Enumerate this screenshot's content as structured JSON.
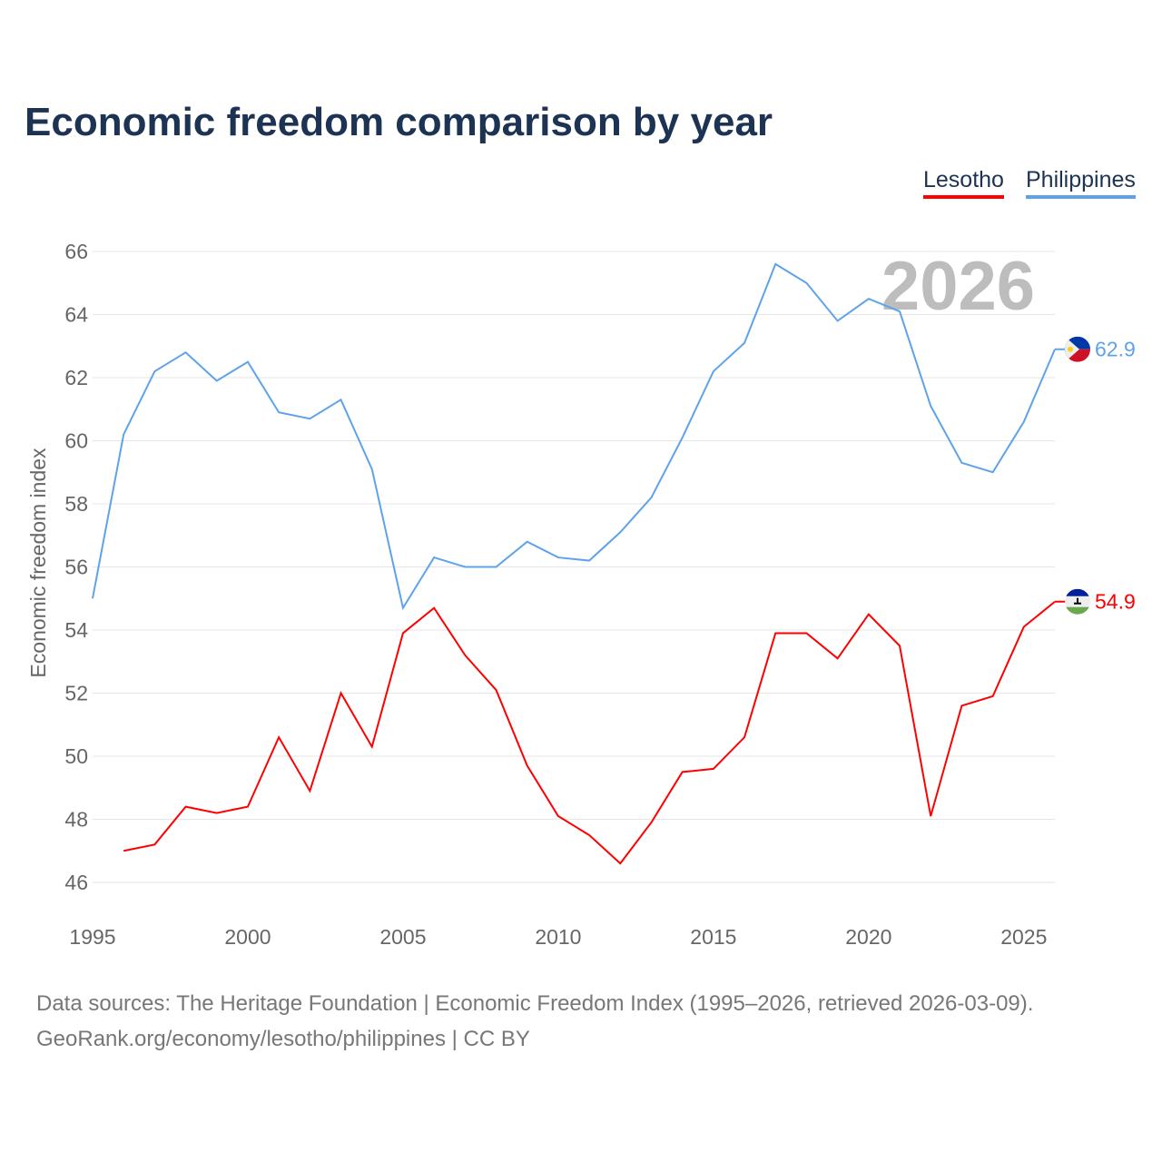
{
  "title": "Economic freedom comparison by year",
  "footer": {
    "line1": "Data sources: The Heritage Foundation | Economic Freedom Index (1995–2026, retrieved 2026-03-09).",
    "line2": "GeoRank.org/economy/lesotho/philippines | CC BY"
  },
  "chart_data": {
    "type": "line",
    "title": "Economic freedom comparison by year",
    "xlabel": "",
    "ylabel": "Economic freedom index",
    "year_watermark": "2026",
    "xlim": [
      1995,
      2026
    ],
    "ylim": [
      46,
      66
    ],
    "x_ticks": [
      "1995",
      "2000",
      "2005",
      "2010",
      "2015",
      "2020",
      "2025"
    ],
    "y_ticks": [
      "46",
      "48",
      "50",
      "52",
      "54",
      "56",
      "58",
      "60",
      "62",
      "64",
      "66"
    ],
    "grid": true,
    "legend_position": "top-right",
    "x": [
      1995,
      1996,
      1997,
      1998,
      1999,
      2000,
      2001,
      2002,
      2003,
      2004,
      2005,
      2006,
      2007,
      2008,
      2009,
      2010,
      2011,
      2012,
      2013,
      2014,
      2015,
      2016,
      2017,
      2018,
      2019,
      2020,
      2021,
      2022,
      2023,
      2024,
      2025,
      2026
    ],
    "series": [
      {
        "name": "Lesotho",
        "color": "#ff0000",
        "end_label": "54.9",
        "values": [
          null,
          47.0,
          47.2,
          48.4,
          48.2,
          48.4,
          50.6,
          48.9,
          52.0,
          50.3,
          53.9,
          54.7,
          53.2,
          52.1,
          49.7,
          48.1,
          47.5,
          46.6,
          47.9,
          49.5,
          49.6,
          50.6,
          53.9,
          53.9,
          53.1,
          54.5,
          53.5,
          48.1,
          51.6,
          51.9,
          54.1,
          54.9
        ]
      },
      {
        "name": "Philippines",
        "color": "#5ea3ea",
        "end_label": "62.9",
        "values": [
          55.0,
          60.2,
          62.2,
          62.8,
          61.9,
          62.5,
          60.9,
          60.7,
          61.3,
          59.1,
          54.7,
          56.3,
          56.0,
          56.0,
          56.8,
          56.3,
          56.2,
          57.1,
          58.2,
          60.1,
          62.2,
          63.1,
          65.6,
          65.0,
          63.8,
          64.5,
          64.1,
          61.1,
          59.3,
          59.0,
          60.6,
          62.9
        ]
      }
    ]
  }
}
